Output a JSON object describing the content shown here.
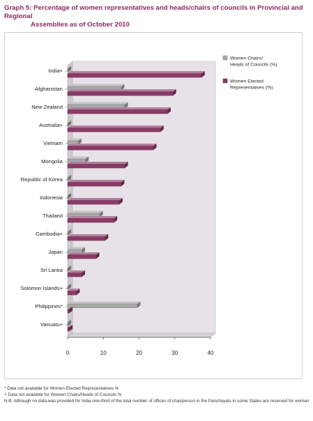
{
  "title": {
    "line1": "Graph 5: Percentage of women representatives and heads/chairs of councils in Provincial and Regional",
    "line2": "Assemblies as of October 2010"
  },
  "colors": {
    "chairs": "#a8a8a8",
    "elected": "#8a3b67",
    "wall": "#e7e2e7",
    "floor": "#d8d2d8"
  },
  "chart_data": {
    "type": "bar",
    "orientation": "horizontal",
    "categories": [
      "India+",
      "Afghanistan",
      "New Zealand",
      "Australia+",
      "Vietnam",
      "Mongolia",
      "Republic of Korea",
      "Indonesia",
      "Thailand",
      "Cambodia+",
      "Japan",
      "Sri Lanka",
      "Solomon Islands+",
      "Philippines*",
      "Vanuatu+"
    ],
    "series": [
      {
        "name": "Women Chairs/ Heads of Councils (%)",
        "values": [
          0,
          15,
          16,
          0,
          3,
          5,
          0,
          0,
          9,
          0,
          4,
          0,
          0,
          19.5,
          0
        ]
      },
      {
        "name": "Women Elected Representatives (%)",
        "values": [
          37.5,
          29.5,
          28,
          26,
          24,
          16,
          15,
          14.5,
          13,
          10.5,
          8,
          4,
          2.5,
          0.5,
          0.5
        ]
      }
    ],
    "xlim": [
      0,
      40
    ],
    "xticks": [
      0,
      10,
      20,
      30,
      40
    ],
    "xlabel": "",
    "ylabel": "",
    "grid": false,
    "legend_position": "right"
  },
  "footer": {
    "note1": "*   Data not available for Women Elected Representatives %",
    "note2": "+   Data not available for Women Chairs/Heads of Councils %",
    "note3": "N.B. Although no data was provided for India one-third of the total number of offices of chairperson in the Panchayats in some States are reserved for women"
  }
}
